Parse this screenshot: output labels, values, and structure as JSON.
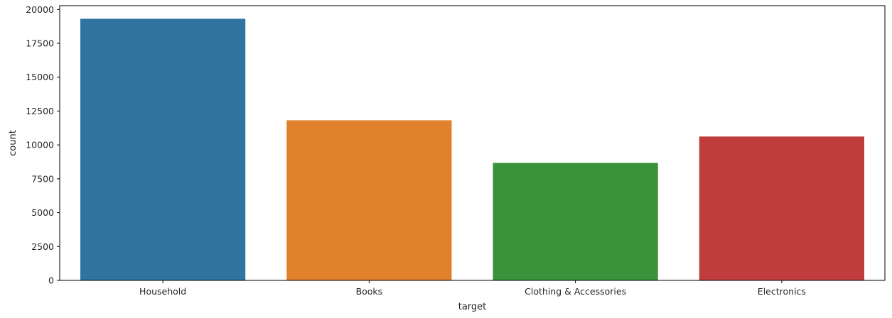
{
  "chart_data": {
    "type": "bar",
    "title": "",
    "xlabel": "target",
    "ylabel": "count",
    "categories": [
      "Household",
      "Books",
      "Clothing & Accessories",
      "Electronics"
    ],
    "values": [
      19313,
      11820,
      8671,
      10621
    ],
    "colors": [
      "#3274a1",
      "#e1812c",
      "#3a923a",
      "#c03d3e"
    ],
    "ylim": [
      0,
      20279
    ],
    "yticks": [
      0,
      2500,
      5000,
      7500,
      10000,
      12500,
      15000,
      17500,
      20000
    ],
    "grid": false,
    "legend": "none"
  }
}
